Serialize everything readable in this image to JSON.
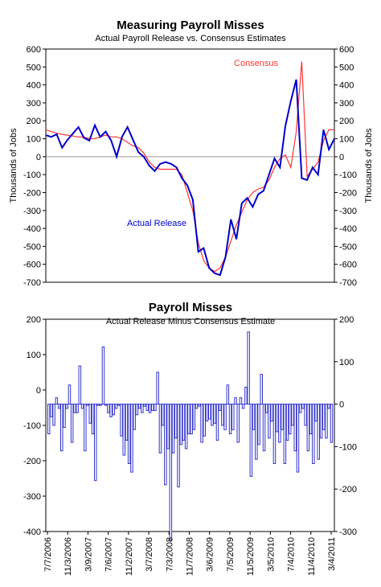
{
  "chart_data": [
    {
      "type": "line",
      "title": "Measuring Payroll Misses",
      "subtitle": "Actual Payroll Release vs. Consensus Estimates",
      "ylabel": "Thousands of Jobs",
      "ylim": [
        -700,
        600
      ],
      "yticks": [
        "600",
        "500",
        "400",
        "300",
        "200",
        "100",
        "0",
        "-100",
        "-200",
        "-300",
        "-400",
        "-500",
        "-600",
        "-700"
      ],
      "zero_line": true,
      "colors": {
        "actual": "#0000cc",
        "consensus": "#ff3333"
      },
      "series": [
        {
          "name": "Actual Release",
          "values": [
            120,
            110,
            125,
            50,
            95,
            130,
            165,
            105,
            90,
            175,
            110,
            140,
            90,
            0,
            110,
            165,
            95,
            25,
            0,
            -50,
            -80,
            -40,
            -30,
            -40,
            -60,
            -120,
            -160,
            -240,
            -530,
            -510,
            -620,
            -650,
            -660,
            -560,
            -350,
            -460,
            -260,
            -230,
            -280,
            -210,
            -190,
            -100,
            -10,
            -60,
            170,
            310,
            430,
            -120,
            -130,
            -60,
            -100,
            150,
            40,
            100
          ]
        },
        {
          "name": "Consensus",
          "values": [
            150,
            140,
            130,
            125,
            120,
            115,
            110,
            110,
            100,
            100,
            110,
            120,
            110,
            110,
            100,
            80,
            60,
            50,
            20,
            -30,
            -60,
            -70,
            -70,
            -70,
            -70,
            -100,
            -200,
            -300,
            -480,
            -580,
            -620,
            -640,
            -620,
            -560,
            -470,
            -380,
            -310,
            -240,
            -200,
            -180,
            -170,
            -130,
            -60,
            -10,
            10,
            -60,
            140,
            530,
            -110,
            -70,
            -30,
            90,
            150,
            150
          ]
        }
      ],
      "annotations": [
        {
          "text": "Consensus",
          "color": "#ff3333"
        },
        {
          "text": "Actual Release",
          "color": "#0000cc"
        }
      ]
    },
    {
      "type": "bar",
      "title": "Payroll Misses",
      "subtitle": "Actual Release Minus Consensus Estimate",
      "ylim": [
        -400,
        200
      ],
      "yticks": [
        "200",
        "100",
        "0",
        "-100",
        "-200",
        "-300",
        "-400"
      ],
      "ylim_right": [
        -300,
        200
      ],
      "yticks_right": [
        "200",
        "100",
        "0",
        "-100",
        "-200",
        "-300"
      ],
      "bar_color": "#3333cc",
      "values": [
        -70,
        -30,
        -50,
        15,
        -10,
        -110,
        -55,
        -10,
        45,
        -90,
        -20,
        -20,
        90,
        -10,
        -110,
        -3,
        -45,
        -70,
        -180,
        -3,
        -3,
        135,
        -3,
        -20,
        -30,
        -25,
        -10,
        -3,
        -75,
        -120,
        -85,
        -140,
        -160,
        -60,
        -25,
        -10,
        -20,
        -5,
        -15,
        -20,
        -15,
        -15,
        75,
        -115,
        -50,
        -190,
        -105,
        -320,
        -115,
        -80,
        -195,
        -95,
        -85,
        -105,
        -70,
        -70,
        -60,
        -10,
        -5,
        -90,
        -75,
        -40,
        -35,
        -50,
        -45,
        -85,
        -15,
        -50,
        -60,
        45,
        -70,
        -60,
        15,
        -90,
        15,
        -10,
        40,
        170,
        -170,
        -60,
        -130,
        -95,
        70,
        -110,
        -20,
        -80,
        -40,
        -140,
        -65,
        -90,
        -60,
        -140,
        -85,
        -70,
        -50,
        -110,
        -160,
        -20,
        -10,
        -50,
        -110,
        -70,
        -140,
        -40,
        -130,
        -80,
        -60,
        -80,
        -10,
        -90
      ],
      "xticks": [
        "7/7/2006",
        "11/3/2006",
        "3/9/2007",
        "7/6/2007",
        "11/2/2007",
        "3/7/2008",
        "7/3/2008",
        "11/7/2008",
        "3/6/2009",
        "7/5/2009",
        "11/5/2009",
        "3/5/2010",
        "7/4/2010",
        "11/4/2010",
        "3/4/2011"
      ]
    }
  ]
}
